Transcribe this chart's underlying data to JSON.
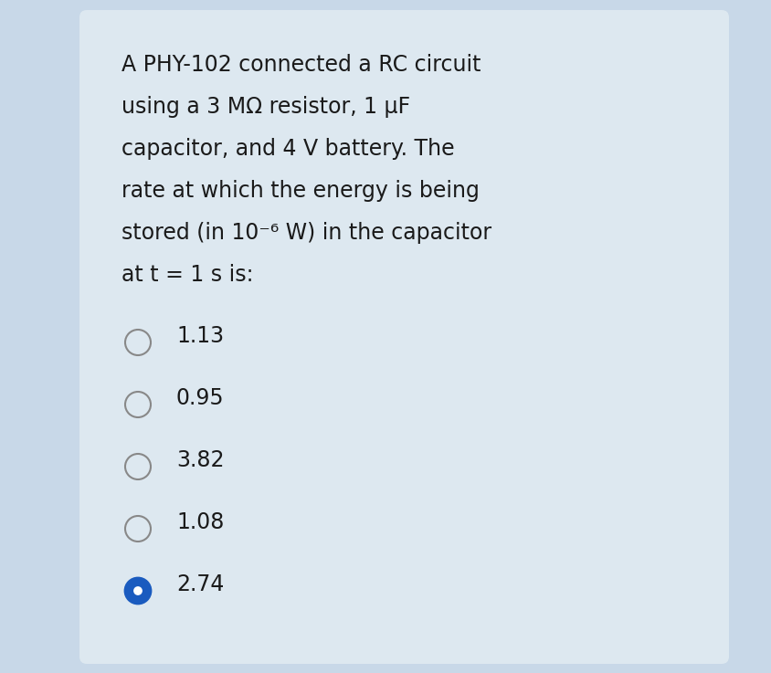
{
  "bg_outer": "#c8d8e8",
  "bg_card": "#dde8f0",
  "question_lines": [
    "A PHY-102 connected a RC circuit",
    "using a 3 MΩ resistor, 1 μF",
    "capacitor, and 4 V battery. The",
    "rate at which the energy is being",
    "stored (in 10⁻⁶ W) in the capacitor",
    "at t = 1 s is:"
  ],
  "options": [
    "1.13",
    "0.95",
    "3.82",
    "1.08",
    "2.74"
  ],
  "selected_index": 4,
  "text_color": "#1a1a1a",
  "option_text_size": 17,
  "question_text_size": 17,
  "circle_color_empty": "#888888",
  "circle_color_selected_fill": "#1a5bbf",
  "circle_color_selected_border": "#1a5bbf"
}
